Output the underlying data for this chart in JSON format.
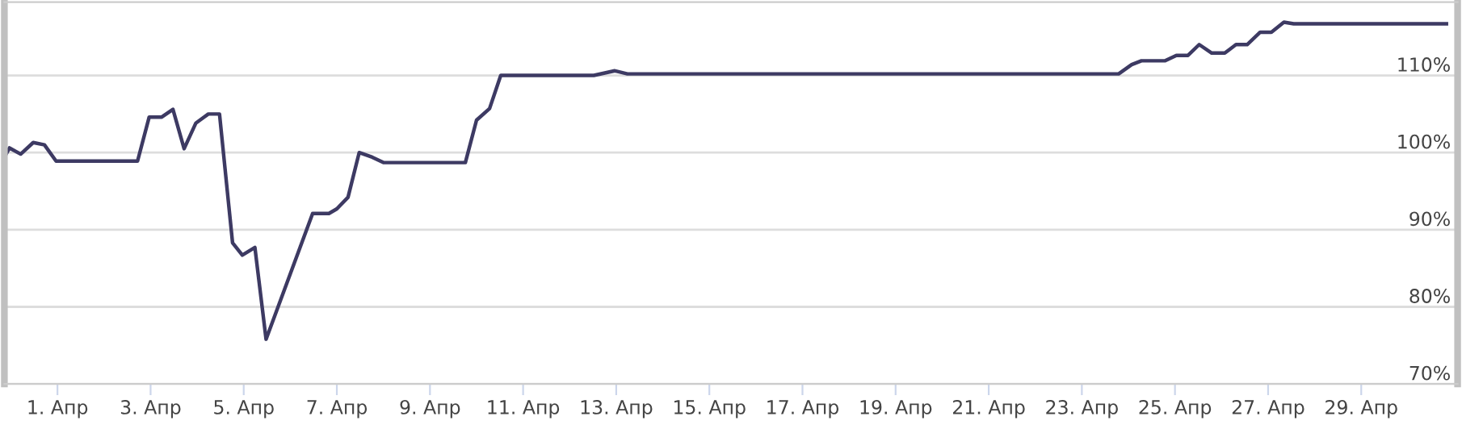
{
  "chart_data": {
    "type": "line",
    "x": [
      -0.14,
      -0.03,
      0.21,
      0.48,
      0.72,
      0.97,
      2.72,
      2.97,
      3.24,
      3.48,
      3.72,
      3.97,
      4.24,
      4.48,
      4.76,
      4.97,
      5.24,
      5.48,
      6.48,
      6.83,
      7.0,
      7.24,
      7.48,
      7.76,
      8.0,
      9.76,
      10.0,
      10.28,
      10.52,
      12.52,
      12.97,
      13.24,
      23.79,
      24.07,
      24.28,
      24.79,
      25.03,
      25.28,
      25.52,
      25.79,
      26.07,
      26.31,
      26.55,
      26.83,
      27.07,
      27.34,
      27.55,
      30.83
    ],
    "series": [
      {
        "color": "#3d3a63",
        "values": [
          99.4,
          100.6,
          99.8,
          101.3,
          101.0,
          98.9,
          98.9,
          104.6,
          104.6,
          105.6,
          100.5,
          103.8,
          105.0,
          105.0,
          88.3,
          86.7,
          87.7,
          75.8,
          92.1,
          92.1,
          92.7,
          94.2,
          100.0,
          99.4,
          98.7,
          98.7,
          104.2,
          105.7,
          110.0,
          110.0,
          110.6,
          110.2,
          110.2,
          111.4,
          111.9,
          111.9,
          112.6,
          112.6,
          114.0,
          112.9,
          112.9,
          114.0,
          114.0,
          115.6,
          115.6,
          116.9,
          116.7,
          116.7
        ]
      }
    ],
    "xlim": [
      -0.14,
      31.07
    ],
    "xticks": [
      {
        "value": 1,
        "label": "1. Апр"
      },
      {
        "value": 3,
        "label": "3. Апр"
      },
      {
        "value": 5,
        "label": "5. Апр"
      },
      {
        "value": 7,
        "label": "7. Апр"
      },
      {
        "value": 9,
        "label": "9. Апр"
      },
      {
        "value": 11,
        "label": "11. Апр"
      },
      {
        "value": 13,
        "label": "13. Апр"
      },
      {
        "value": 15,
        "label": "15. Апр"
      },
      {
        "value": 17,
        "label": "17. Апр"
      },
      {
        "value": 19,
        "label": "19. Апр"
      },
      {
        "value": 21,
        "label": "21. Апр"
      },
      {
        "value": 23,
        "label": "23. Апр"
      },
      {
        "value": 25,
        "label": "25. Апр"
      },
      {
        "value": 27,
        "label": "27. Апр"
      },
      {
        "value": 29,
        "label": "29. Апр"
      }
    ],
    "ylim": [
      70,
      119.5
    ],
    "yticks": [
      {
        "value": 70,
        "label": "70%"
      },
      {
        "value": 80,
        "label": "80%"
      },
      {
        "value": 90,
        "label": "90%"
      },
      {
        "value": 100,
        "label": "100%"
      },
      {
        "value": 110,
        "label": "110%"
      }
    ],
    "grid": "y",
    "legend": false,
    "marker": "none",
    "line_style": "solid"
  }
}
